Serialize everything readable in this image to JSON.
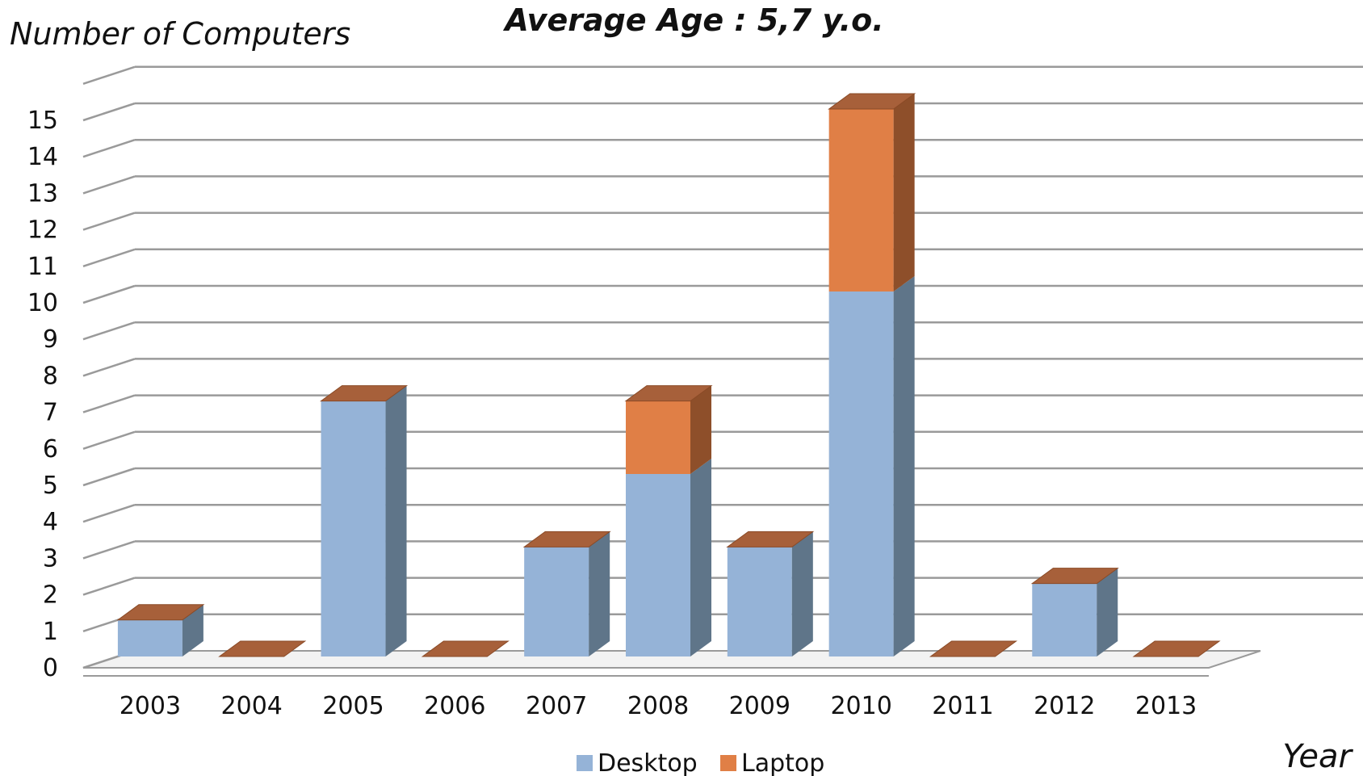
{
  "chart_data": {
    "type": "bar",
    "stacked": true,
    "three_d": true,
    "title": "Average Age : 5,7 y.o.",
    "ylabel": "Number of Computers",
    "xlabel": "Year",
    "categories": [
      "2003",
      "2004",
      "2005",
      "2006",
      "2007",
      "2008",
      "2009",
      "2010",
      "2011",
      "2012",
      "2013"
    ],
    "yticks": [
      "0",
      "1",
      "2",
      "3",
      "4",
      "5",
      "6",
      "7",
      "8",
      "9",
      "10",
      "11",
      "12",
      "13",
      "14",
      "15"
    ],
    "ylim": [
      0,
      16
    ],
    "grid": true,
    "legend_position": "bottom",
    "series": [
      {
        "name": "Desktop",
        "color": "#95B3D7",
        "side_color": "#5F7589",
        "top_color": "#B5CCE4",
        "values": [
          1,
          0,
          7,
          0,
          3,
          5,
          3,
          10,
          0,
          2,
          0
        ]
      },
      {
        "name": "Laptop",
        "color": "#E07F46",
        "side_color": "#8E4F2A",
        "top_color": "#A7603A",
        "values": [
          0,
          0,
          0,
          0,
          0,
          2,
          0,
          5,
          0,
          0,
          0
        ]
      }
    ]
  }
}
